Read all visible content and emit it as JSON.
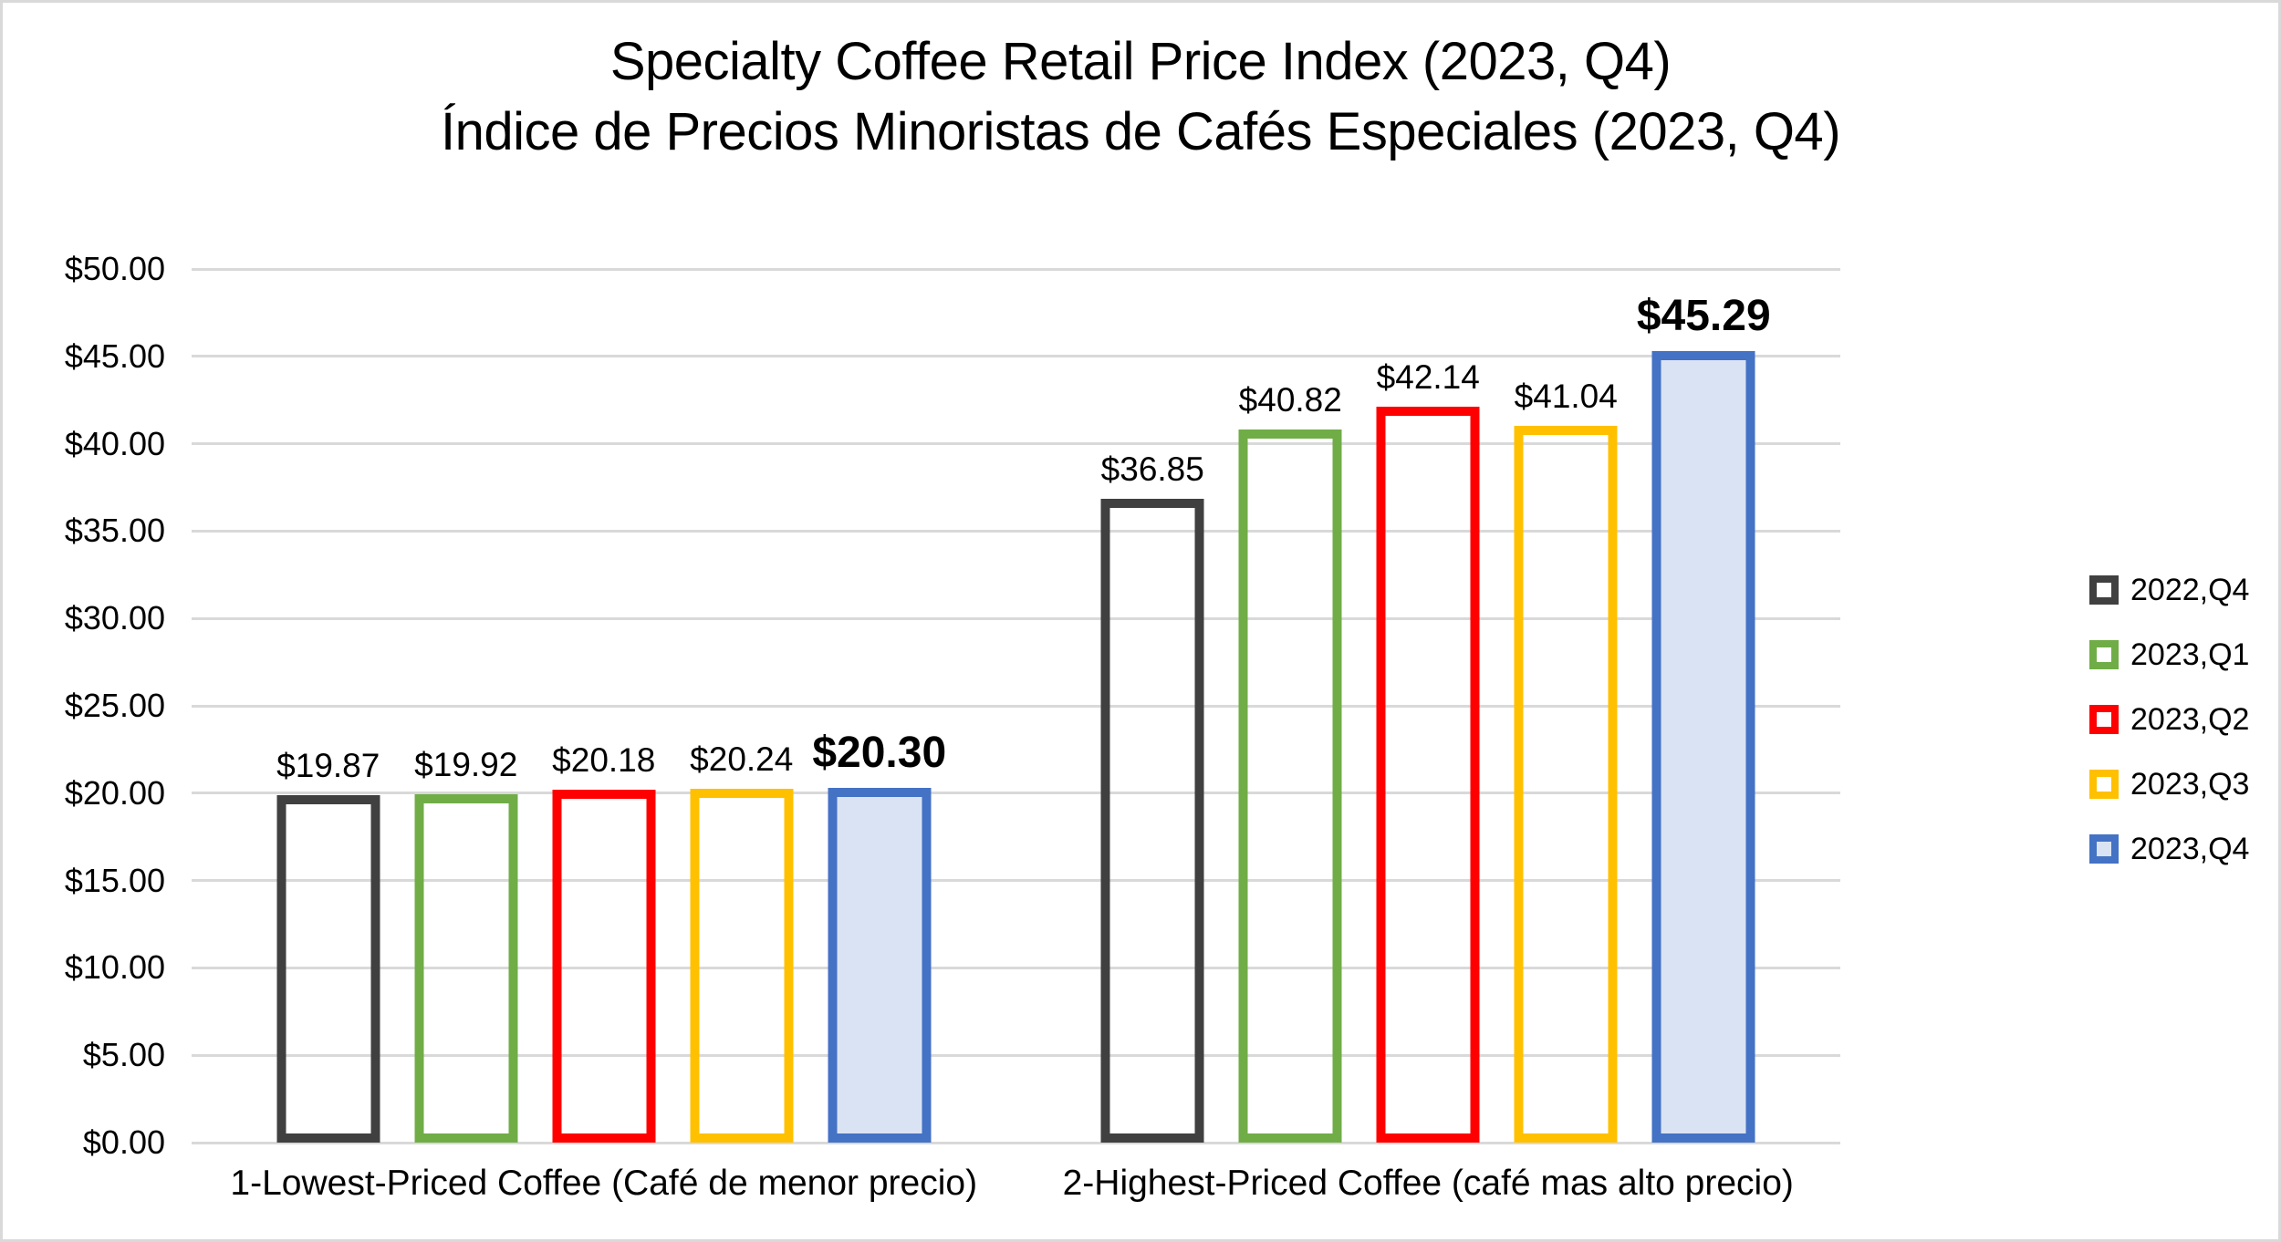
{
  "window": {
    "background_color": "#ffffff",
    "frame_border_color": "#d9d9d9"
  },
  "title": {
    "line1": "Specialty Coffee Retail Price Index (2023, Q4)",
    "line2": "Índice de Precios Minoristas de Cafés Especiales (2023, Q4)"
  },
  "chart_data": {
    "type": "bar",
    "title": "Specialty Coffee Retail Price Index (2023, Q4) / Índice de Precios Minoristas de Cafés Especiales (2023, Q4)",
    "categories": [
      "1-Lowest-Priced Coffee (Café de menor precio)",
      "2-Highest-Priced Coffee (café mas alto precio)"
    ],
    "series": [
      {
        "name": "2022,Q4",
        "color": "#404040",
        "fill": "transparent",
        "emphasis": false,
        "values": [
          19.87,
          36.85
        ],
        "labels": [
          "$19.87",
          "$36.85"
        ]
      },
      {
        "name": "2023,Q1",
        "color": "#70ad47",
        "fill": "transparent",
        "emphasis": false,
        "values": [
          19.92,
          40.82
        ],
        "labels": [
          "$19.92",
          "$40.82"
        ]
      },
      {
        "name": "2023,Q2",
        "color": "#ff0000",
        "fill": "transparent",
        "emphasis": false,
        "values": [
          20.18,
          42.14
        ],
        "labels": [
          "$20.18",
          "$42.14"
        ]
      },
      {
        "name": "2023,Q3",
        "color": "#ffc000",
        "fill": "transparent",
        "emphasis": false,
        "values": [
          20.24,
          41.04
        ],
        "labels": [
          "$20.24",
          "$41.04"
        ]
      },
      {
        "name": "2023,Q4",
        "color": "#4472c4",
        "fill": "#dae3f3",
        "emphasis": true,
        "values": [
          20.3,
          45.29
        ],
        "labels": [
          "$20.30",
          "$45.29"
        ]
      }
    ],
    "y_axis": {
      "ticks": [
        "$50.00",
        "$45.00",
        "$40.00",
        "$35.00",
        "$30.00",
        "$25.00",
        "$20.00",
        "$15.00",
        "$10.00",
        "$5.00",
        "$0.00"
      ],
      "min": 0,
      "max": 50,
      "step": 5
    },
    "grid": true,
    "gridline_color": "#d9d9d9",
    "legend_position": "right",
    "legend_items": [
      "2022,Q4",
      "2023,Q1",
      "2023,Q2",
      "2023,Q3",
      "2023,Q4"
    ]
  }
}
